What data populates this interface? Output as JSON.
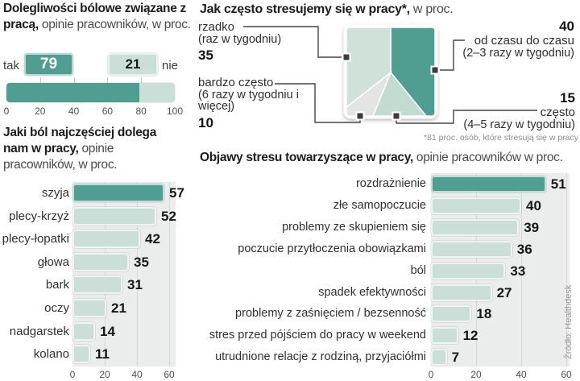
{
  "colors": {
    "teal_dark": "#4f9e91",
    "teal_light": "#cbdfd8",
    "teal_mid": "#c3dcd2",
    "teal_pale": "#d0e1da",
    "grey_wedge": "#e3e5e4",
    "panel": "#ebecec",
    "grid": "#d7d9d8",
    "marker": "#3a3c3b",
    "leader": "#454545"
  },
  "titles": {
    "pain_yesno": {
      "bold": "Dolegliwości bólowe związane z pracą,",
      "rest": " opinie pracowników, w proc."
    },
    "stress_freq": {
      "bold": "Jak często stresujemy się w pracy*,",
      "rest": " w proc."
    },
    "pain_types": {
      "bold": "Jaki ból najczęściej dolega nam w pracy,",
      "rest": " opinie pracowników, w proc."
    },
    "stress_symptoms": {
      "bold": "Objawy stresu towarzyszące w pracy,",
      "rest": " opinie pracowników w proc."
    }
  },
  "source": "Źródło: Healthdesk",
  "chart_data": [
    {
      "id": "pain_yesno",
      "type": "bar",
      "variant": "horizontal-stacked",
      "title": "Dolegliwości bólowe związane z pracą, opinie pracowników, w proc.",
      "categories": [
        "tak",
        "nie"
      ],
      "values": [
        79,
        21
      ],
      "xlim": [
        0,
        100
      ],
      "ticks": [
        0,
        20,
        40,
        60,
        80,
        100
      ],
      "grid": false,
      "legend_position": "none"
    },
    {
      "id": "stress_freq",
      "type": "pie",
      "variant": "square",
      "title": "Jak często stresujemy się w pracy*, w proc.",
      "footnote": "*81 proc. osób, które stresują się w pracy",
      "segments": [
        {
          "label": "od czasu do czasu",
          "sublabel": "(2–3 razy w tygodniu)",
          "value": 40,
          "color": "#4f9e91"
        },
        {
          "label": "często",
          "sublabel": "(4–5 razy w tygodniu)",
          "value": 15,
          "color": "#c3dcd2"
        },
        {
          "label": "bardzo często",
          "sublabel": "(6 razy w tygodniu i więcej)",
          "value": 10,
          "color": "#e3e5e4"
        },
        {
          "label": "rzadko",
          "sublabel": "(raz w tygodniu)",
          "value": 35,
          "color": "#d0e1da"
        }
      ]
    },
    {
      "id": "pain_types",
      "type": "bar",
      "variant": "horizontal",
      "title": "Jaki ból najczęściej dolega nam w pracy, opinie pracowników, w proc.",
      "categories": [
        "szyja",
        "plecy-krzyż",
        "plecy-łopatki",
        "głowa",
        "bark",
        "oczy",
        "nadgarstek",
        "kolano"
      ],
      "values": [
        57,
        52,
        42,
        35,
        31,
        21,
        14,
        11
      ],
      "xlim": [
        0,
        60
      ],
      "ticks": [
        0,
        20,
        40,
        60
      ],
      "grid": true
    },
    {
      "id": "stress_symptoms",
      "type": "bar",
      "variant": "horizontal",
      "title": "Objawy stresu towarzyszące w pracy, opinie pracowników w proc.",
      "categories": [
        "rozdrażnienie",
        "złe samopoczucie",
        "problemy ze skupieniem się",
        "poczucie przytłoczenia obowiązkami",
        "ból",
        "spadek efektywności",
        "problemy z zaśnięciem / bezsenność",
        "stres przed pójściem do pracy w weekend",
        "utrudnione relacje z rodziną, przyjaciółmi"
      ],
      "values": [
        51,
        40,
        39,
        36,
        33,
        27,
        18,
        12,
        7
      ],
      "xlim": [
        0,
        60
      ],
      "ticks": [
        0,
        20,
        40,
        60
      ],
      "grid": true
    }
  ]
}
